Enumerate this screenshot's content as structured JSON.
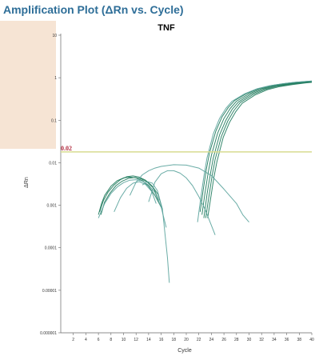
{
  "header": {
    "title": "Amplification Plot (ΔRn vs. Cycle)"
  },
  "colors": {
    "header": "#2e6e98",
    "curve_dark": "#1e7a5c",
    "curve_light": "#5aa39c",
    "threshold": "#d8dc90",
    "threshold_label": "#b0283c",
    "side_panel": "#f6e4d4"
  },
  "chart_data": {
    "type": "line",
    "title": "TNF",
    "xlabel": "Cycle",
    "ylabel": "ΔRn",
    "xlim": [
      0,
      40
    ],
    "ylim": [
      1e-06,
      10
    ],
    "yscale": "log",
    "grid": false,
    "xticks": [
      2,
      4,
      6,
      8,
      10,
      12,
      14,
      16,
      18,
      20,
      22,
      24,
      26,
      28,
      30,
      32,
      34,
      36,
      38,
      40
    ],
    "yticks": [
      {
        "value": 10,
        "label": "10"
      },
      {
        "value": 1,
        "label": "1"
      },
      {
        "value": 0.1,
        "label": "0.1"
      },
      {
        "value": 0.01,
        "label": "0.01"
      },
      {
        "value": 0.001,
        "label": "0.001"
      },
      {
        "value": 0.0001,
        "label": "0.0001"
      },
      {
        "value": 1e-05,
        "label": "0.00001"
      },
      {
        "value": 1e-06,
        "label": "0.000001"
      }
    ],
    "threshold": {
      "value": 0.018,
      "label": "0.02"
    },
    "series": [
      {
        "color": "#1e7a5c",
        "x": [
          22.5,
          23,
          23.5,
          24,
          25,
          26,
          27,
          28,
          30,
          32,
          34,
          36,
          38,
          40
        ],
        "y": [
          0.0006,
          0.002,
          0.006,
          0.015,
          0.05,
          0.11,
          0.19,
          0.28,
          0.42,
          0.55,
          0.65,
          0.72,
          0.78,
          0.82
        ]
      },
      {
        "color": "#1e7a5c",
        "x": [
          22.8,
          23.3,
          23.8,
          24.3,
          25.3,
          26.3,
          27.3,
          28.3,
          30.3,
          32.3,
          34.3,
          36.3,
          38.3,
          40
        ],
        "y": [
          0.0005,
          0.0018,
          0.005,
          0.013,
          0.045,
          0.1,
          0.18,
          0.27,
          0.41,
          0.54,
          0.64,
          0.71,
          0.77,
          0.8
        ]
      },
      {
        "color": "#1e7a5c",
        "x": [
          23.1,
          23.6,
          24.1,
          24.6,
          25.6,
          26.6,
          27.6,
          28.6,
          30.6,
          32.6,
          34.6,
          36.6,
          38.6,
          40
        ],
        "y": [
          0.0005,
          0.0016,
          0.0048,
          0.012,
          0.042,
          0.095,
          0.17,
          0.26,
          0.4,
          0.53,
          0.63,
          0.7,
          0.76,
          0.79
        ]
      },
      {
        "color": "#1e7a5c",
        "x": [
          22.2,
          22.7,
          23.2,
          23.7,
          24.7,
          25.7,
          26.7,
          27.7,
          29.7,
          31.7,
          33.7,
          35.7,
          37.7,
          40
        ],
        "y": [
          0.0007,
          0.0023,
          0.007,
          0.017,
          0.055,
          0.12,
          0.2,
          0.29,
          0.43,
          0.56,
          0.66,
          0.73,
          0.79,
          0.84
        ]
      },
      {
        "color": "#1e7a5c",
        "x": [
          23.4,
          23.9,
          24.4,
          24.9,
          25.9,
          26.9,
          27.9,
          28.9,
          30.9,
          32.9,
          34.9,
          36.9,
          38.9,
          40
        ],
        "y": [
          0.0005,
          0.0015,
          0.0045,
          0.011,
          0.04,
          0.09,
          0.16,
          0.25,
          0.39,
          0.52,
          0.62,
          0.69,
          0.75,
          0.78
        ]
      },
      {
        "color": "#5aa39c",
        "x": [
          21.8,
          22.3,
          22.8,
          23.3,
          24.3,
          25.3,
          26.3,
          27.3,
          29.3,
          31.3,
          33.3,
          35.3,
          37.3,
          40
        ],
        "y": [
          0.0004,
          0.0015,
          0.0048,
          0.013,
          0.048,
          0.11,
          0.19,
          0.28,
          0.42,
          0.55,
          0.65,
          0.72,
          0.78,
          0.83
        ]
      },
      {
        "color": "#1e7a5c",
        "x": [
          6,
          6.5,
          7,
          8,
          9,
          10,
          11,
          12,
          13,
          14,
          15,
          16
        ],
        "y": [
          0.0006,
          0.0011,
          0.0017,
          0.0028,
          0.0038,
          0.0044,
          0.0046,
          0.0044,
          0.0038,
          0.0028,
          0.0017,
          0.0009
        ]
      },
      {
        "color": "#1e7a5c",
        "x": [
          6.2,
          6.8,
          7.5,
          8.5,
          9.5,
          10.5,
          11.5,
          12.5,
          13.5,
          14.5,
          15.5,
          16.2
        ],
        "y": [
          0.0007,
          0.0013,
          0.002,
          0.003,
          0.004,
          0.0047,
          0.0049,
          0.0046,
          0.0039,
          0.0029,
          0.0018,
          0.0008
        ]
      },
      {
        "color": "#1e7a5c",
        "x": [
          6.4,
          7,
          7.8,
          8.8,
          9.8,
          10.8,
          11.8,
          12.8,
          13.8,
          14.8,
          15.6
        ],
        "y": [
          0.0006,
          0.0012,
          0.0019,
          0.0029,
          0.0037,
          0.0043,
          0.0045,
          0.0042,
          0.0035,
          0.0025,
          0.0013
        ]
      },
      {
        "color": "#5aa39c",
        "x": [
          6,
          7,
          8,
          9,
          10,
          11,
          12,
          13,
          14,
          15,
          16,
          16.8
        ],
        "y": [
          0.0005,
          0.0011,
          0.0019,
          0.0027,
          0.0034,
          0.0039,
          0.004,
          0.0037,
          0.003,
          0.002,
          0.0009,
          0.0003
        ]
      },
      {
        "color": "#5aa39c",
        "x": [
          8.5,
          9.5,
          10.5,
          11.5,
          12.5,
          13.5,
          14.5,
          15.2
        ],
        "y": [
          0.0007,
          0.0015,
          0.0025,
          0.0033,
          0.0036,
          0.0031,
          0.0021,
          0.0011
        ]
      },
      {
        "color": "#5aa39c",
        "x": [
          13,
          13.8,
          14.6,
          15.4,
          16.2,
          17,
          17.3
        ],
        "y": [
          0.003,
          0.0036,
          0.0033,
          0.0022,
          0.0008,
          6e-05,
          1.5e-05
        ]
      },
      {
        "color": "#5aa39c",
        "x": [
          11,
          12,
          13,
          14,
          15,
          16,
          18,
          20,
          22,
          24,
          26,
          28,
          29,
          30
        ],
        "y": [
          0.0017,
          0.0035,
          0.0052,
          0.0065,
          0.0075,
          0.0082,
          0.009,
          0.0088,
          0.0075,
          0.005,
          0.0024,
          0.0011,
          0.0006,
          0.0004
        ]
      },
      {
        "color": "#5aa39c",
        "x": [
          14,
          15,
          16,
          17,
          18,
          19,
          20,
          21,
          22,
          23,
          23.8,
          24.6
        ],
        "y": [
          0.0012,
          0.0035,
          0.0055,
          0.0065,
          0.0065,
          0.0057,
          0.0044,
          0.0029,
          0.0016,
          0.0008,
          0.0004,
          0.0002
        ]
      }
    ]
  }
}
